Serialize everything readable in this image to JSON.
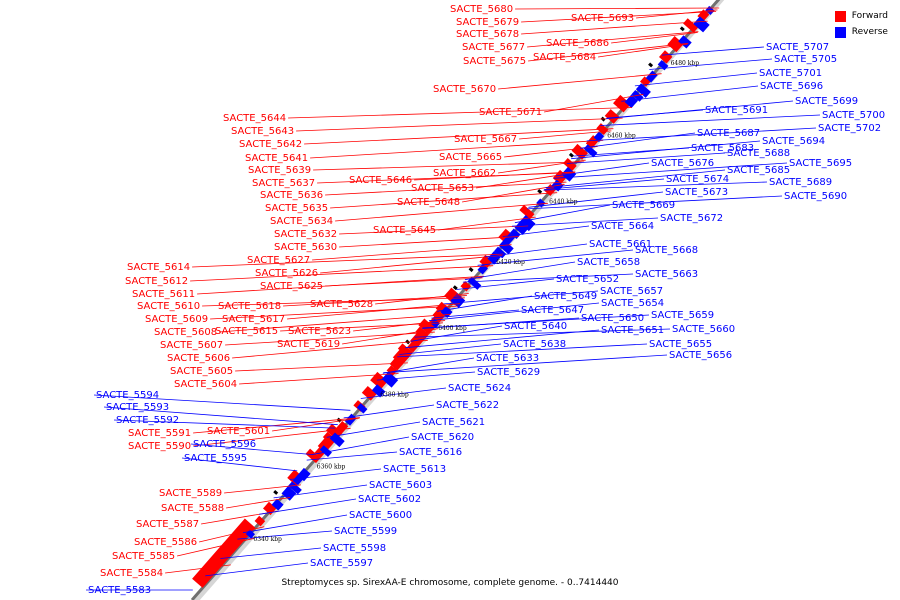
{
  "legend": {
    "forward": {
      "label": "Forward",
      "color": "#ff0000"
    },
    "reverse": {
      "label": "Reverse",
      "color": "#0000ff"
    }
  },
  "caption": "Streptomyces sp. SirexAA-E chromosome, complete genome. - 0..7414440",
  "ticks": [
    "6340 kbp",
    "6360 kbp",
    "6380 kbp",
    "6400 kbp",
    "6420 kbp",
    "6440 kbp",
    "6460 kbp",
    "6480 kbp"
  ],
  "forward_labels": [
    "SACTE_5680",
    "SACTE_5679",
    "SACTE_5678",
    "SACTE_5677",
    "SACTE_5675",
    "SACTE_5693",
    "SACTE_5686",
    "SACTE_5684",
    "SACTE_5670",
    "SACTE_5671",
    "SACTE_5667",
    "SACTE_5665",
    "SACTE_5662",
    "SACTE_5653",
    "SACTE_5648",
    "SACTE_5646",
    "SACTE_5644",
    "SACTE_5643",
    "SACTE_5642",
    "SACTE_5641",
    "SACTE_5639",
    "SACTE_5637",
    "SACTE_5636",
    "SACTE_5635",
    "SACTE_5634",
    "SACTE_5632",
    "SACTE_5630",
    "SACTE_5645",
    "SACTE_5627",
    "SACTE_5626",
    "SACTE_5625",
    "SACTE_5628",
    "SACTE_5614",
    "SACTE_5612",
    "SACTE_5611",
    "SACTE_5610",
    "SACTE_5618",
    "SACTE_5609",
    "SACTE_5617",
    "SACTE_5608",
    "SACTE_5615",
    "SACTE_5623",
    "SACTE_5607",
    "SACTE_5619",
    "SACTE_5606",
    "SACTE_5605",
    "SACTE_5604",
    "SACTE_5601",
    "SACTE_5591",
    "SACTE_5590",
    "SACTE_5589",
    "SACTE_5588",
    "SACTE_5587",
    "SACTE_5586",
    "SACTE_5585",
    "SACTE_5584"
  ],
  "reverse_labels": [
    "SACTE_5707",
    "SACTE_5705",
    "SACTE_5701",
    "SACTE_5696",
    "SACTE_5699",
    "SACTE_5691",
    "SACTE_5700",
    "SACTE_5702",
    "SACTE_5687",
    "SACTE_5694",
    "SACTE_5683",
    "SACTE_5688",
    "SACTE_5676",
    "SACTE_5695",
    "SACTE_5685",
    "SACTE_5689",
    "SACTE_5674",
    "SACTE_5690",
    "SACTE_5673",
    "SACTE_5669",
    "SACTE_5672",
    "SACTE_5664",
    "SACTE_5661",
    "SACTE_5668",
    "SACTE_5658",
    "SACTE_5663",
    "SACTE_5652",
    "SACTE_5657",
    "SACTE_5649",
    "SACTE_5654",
    "SACTE_5647",
    "SACTE_5650",
    "SACTE_5659",
    "SACTE_5640",
    "SACTE_5651",
    "SACTE_5660",
    "SACTE_5638",
    "SACTE_5655",
    "SACTE_5633",
    "SACTE_5656",
    "SACTE_5629",
    "SACTE_5624",
    "SACTE_5622",
    "SACTE_5621",
    "SACTE_5620",
    "SACTE_5616",
    "SACTE_5613",
    "SACTE_5603",
    "SACTE_5602",
    "SACTE_5600",
    "SACTE_5599",
    "SACTE_5598",
    "SACTE_5597",
    "SACTE_5594",
    "SACTE_5593",
    "SACTE_5592",
    "SACTE_5596",
    "SACTE_5595",
    "SACTE_5583"
  ]
}
